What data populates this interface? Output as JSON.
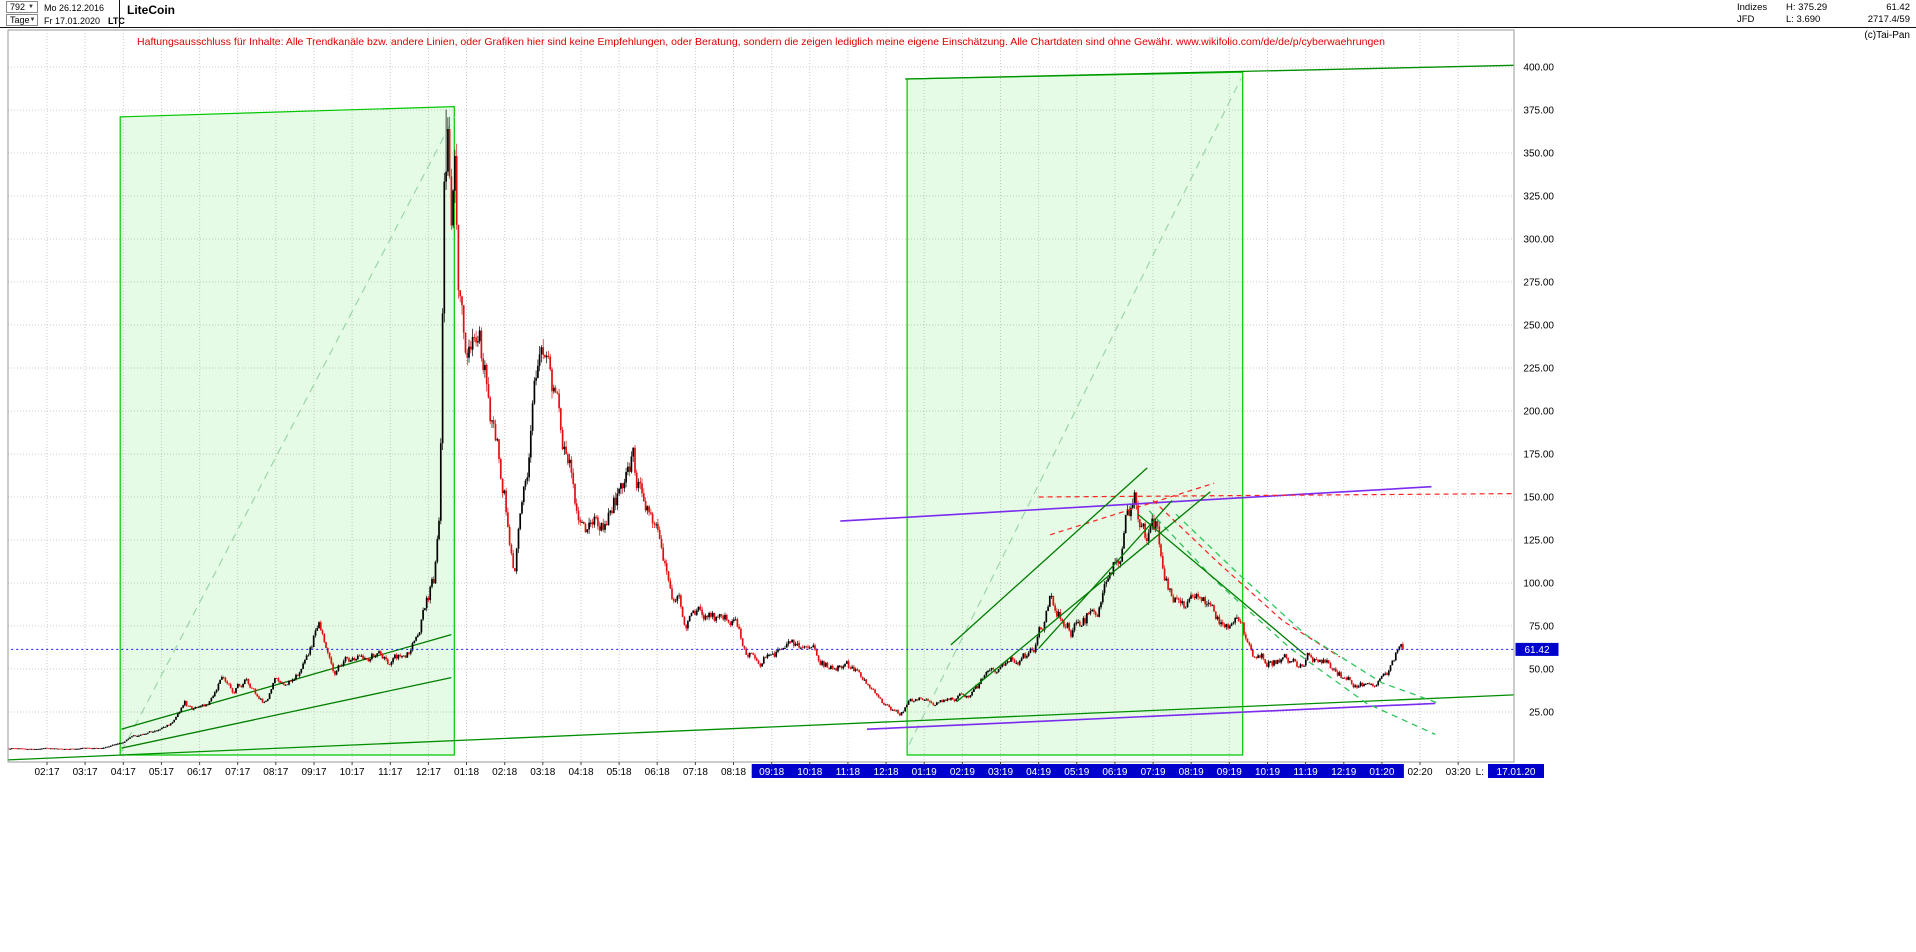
{
  "icons": {
    "chevron_down": "▼"
  },
  "header": {
    "bars_value": "792",
    "period_value": "Tage",
    "date_from": "Mo 26.12.2016",
    "date_to": "Fr 17.01.2020",
    "symbol": "LTC",
    "title": "LiteCoin",
    "info": {
      "group": "Indizes",
      "feed": "JFD",
      "high": "H: 375.29",
      "low": "L: 3.690",
      "last": "61.42",
      "volume": "2717.4/59"
    },
    "copyright": "(c)Tai-Pan"
  },
  "disclaimer": "Haftungsausschluss für Inhalte: Alle Trendkanäle bzw. andere Linien, oder Grafiken hier sind keine Empfehlungen, oder Beratung, sondern die zeigen lediglich meine eigene Einschätzung. Alle Chartdaten sind ohne Gewähr.  www.wikifolio.com/de/de/p/cyberwaehrungen",
  "chart_data": {
    "type": "candlestick",
    "title": "LiteCoin",
    "symbol": "LTC",
    "timeframe": "Tage",
    "visible_bars": 792,
    "range_start": "26.12.2016",
    "range_end": "17.01.2020",
    "period_high": 375.29,
    "period_low": 3.69,
    "last_close": 61.42,
    "last_price_label": "61.42",
    "last_date_prefix": "L:",
    "last_date_label": "17.01.20",
    "ylim": [
      0,
      403
    ],
    "grid": true,
    "y_ticks": [
      "400.00",
      "375.00",
      "350.00",
      "325.00",
      "300.00",
      "275.00",
      "250.00",
      "225.00",
      "200.00",
      "175.00",
      "150.00",
      "125.00",
      "100.00",
      "75.00",
      "50.00",
      "25.00"
    ],
    "x_ticks": [
      "02:17",
      "03:17",
      "04:17",
      "05:17",
      "06:17",
      "07:17",
      "08:17",
      "09:17",
      "10:17",
      "11:17",
      "12:17",
      "01:18",
      "02:18",
      "03:18",
      "04:18",
      "05:18",
      "06:18",
      "07:18",
      "08:18",
      "09:18",
      "10:18",
      "11:18",
      "12:18",
      "01:19",
      "02:19",
      "03:19",
      "04:19",
      "05:19",
      "06:19",
      "07:19",
      "08:19",
      "09:19",
      "10:19",
      "11:19",
      "12:19",
      "01:20",
      "02:20",
      "03:20"
    ],
    "x_highlight": {
      "from": "09:18",
      "to": "01:20"
    },
    "price_line": 61.42,
    "seed": 20200117,
    "bar_count": 795,
    "colors": {
      "up": "#000000",
      "down": "#e01010",
      "accent": "#0000cc",
      "grid": "#cccccc"
    },
    "anchors": [
      [
        -1.2,
        3.7
      ],
      [
        -0.8,
        3.8
      ],
      [
        -0.4,
        3.75
      ],
      [
        0,
        3.9
      ],
      [
        0.4,
        3.8
      ],
      [
        0.8,
        4.0
      ],
      [
        1.2,
        4.1
      ],
      [
        1.5,
        4.6
      ],
      [
        1.8,
        6.5
      ],
      [
        2.0,
        8.0
      ],
      [
        2.3,
        10.5
      ],
      [
        2.6,
        11.5
      ],
      [
        2.9,
        14.5
      ],
      [
        3.2,
        17
      ],
      [
        3.45,
        24
      ],
      [
        3.6,
        31
      ],
      [
        3.8,
        26
      ],
      [
        4.1,
        29
      ],
      [
        4.35,
        33
      ],
      [
        4.6,
        46
      ],
      [
        4.9,
        39
      ],
      [
        5.2,
        43
      ],
      [
        5.5,
        34
      ],
      [
        5.75,
        30
      ],
      [
        5.95,
        43
      ],
      [
        6.2,
        41
      ],
      [
        6.5,
        45
      ],
      [
        6.75,
        53
      ],
      [
        6.95,
        62
      ],
      [
        7.1,
        78
      ],
      [
        7.3,
        63
      ],
      [
        7.55,
        47
      ],
      [
        7.8,
        55
      ],
      [
        8.1,
        51
      ],
      [
        8.4,
        55
      ],
      [
        8.7,
        61
      ],
      [
        8.95,
        55
      ],
      [
        9.2,
        58
      ],
      [
        9.5,
        64
      ],
      [
        9.75,
        73
      ],
      [
        9.95,
        90
      ],
      [
        10.15,
        103
      ],
      [
        10.3,
        155
      ],
      [
        10.42,
        330
      ],
      [
        10.5,
        365
      ],
      [
        10.58,
        300
      ],
      [
        10.7,
        320
      ],
      [
        10.8,
        270
      ],
      [
        10.95,
        240
      ],
      [
        11.2,
        255
      ],
      [
        11.45,
        225
      ],
      [
        11.7,
        185
      ],
      [
        11.95,
        163
      ],
      [
        12.1,
        138
      ],
      [
        12.25,
        112
      ],
      [
        12.5,
        150
      ],
      [
        12.7,
        190
      ],
      [
        12.9,
        232
      ],
      [
        13.1,
        222
      ],
      [
        13.4,
        196
      ],
      [
        13.7,
        162
      ],
      [
        13.95,
        121
      ],
      [
        14.15,
        113
      ],
      [
        14.4,
        126
      ],
      [
        14.7,
        141
      ],
      [
        14.95,
        154
      ],
      [
        15.15,
        172
      ],
      [
        15.35,
        177
      ],
      [
        15.6,
        146
      ],
      [
        15.9,
        126
      ],
      [
        16.15,
        117
      ],
      [
        16.4,
        96
      ],
      [
        16.7,
        83
      ],
      [
        16.95,
        81
      ],
      [
        17.25,
        85
      ],
      [
        17.55,
        77
      ],
      [
        17.85,
        83
      ],
      [
        18.1,
        71
      ],
      [
        18.4,
        61
      ],
      [
        18.7,
        53
      ],
      [
        18.95,
        65
      ],
      [
        19.25,
        59
      ],
      [
        19.55,
        62
      ],
      [
        19.85,
        57
      ],
      [
        20.15,
        58
      ],
      [
        20.45,
        54
      ],
      [
        20.75,
        52
      ],
      [
        20.95,
        50
      ],
      [
        21.25,
        46
      ],
      [
        21.55,
        38
      ],
      [
        21.85,
        33
      ],
      [
        22.1,
        27
      ],
      [
        22.35,
        23.5
      ],
      [
        22.6,
        30
      ],
      [
        22.9,
        32
      ],
      [
        23.2,
        33
      ],
      [
        23.5,
        31.5
      ],
      [
        23.8,
        33
      ],
      [
        24.1,
        34
      ],
      [
        24.4,
        37.5
      ],
      [
        24.7,
        45
      ],
      [
        24.95,
        47
      ],
      [
        25.25,
        50
      ],
      [
        25.55,
        56
      ],
      [
        25.85,
        60
      ],
      [
        26.1,
        74
      ],
      [
        26.3,
        91
      ],
      [
        26.6,
        81
      ],
      [
        26.9,
        75
      ],
      [
        27.2,
        79
      ],
      [
        27.5,
        90
      ],
      [
        27.8,
        101
      ],
      [
        28.1,
        113
      ],
      [
        28.35,
        137
      ],
      [
        28.55,
        143
      ],
      [
        28.85,
        121
      ],
      [
        29.1,
        124
      ],
      [
        29.35,
        100
      ],
      [
        29.6,
        95
      ],
      [
        29.9,
        93
      ],
      [
        30.2,
        97
      ],
      [
        30.5,
        83
      ],
      [
        30.8,
        73
      ],
      [
        31.1,
        67
      ],
      [
        31.3,
        71
      ],
      [
        31.6,
        57
      ],
      [
        31.9,
        56
      ],
      [
        32.2,
        55
      ],
      [
        32.5,
        58
      ],
      [
        32.8,
        53
      ],
      [
        33.1,
        60
      ],
      [
        33.4,
        56
      ],
      [
        33.7,
        50
      ],
      [
        33.95,
        46
      ],
      [
        34.2,
        44
      ],
      [
        34.5,
        42
      ],
      [
        34.8,
        40.5
      ],
      [
        35.0,
        43
      ],
      [
        35.2,
        49
      ],
      [
        35.4,
        57.5
      ],
      [
        35.55,
        61.42
      ]
    ],
    "spikes": [
      {
        "t": 10.45,
        "high": 375.29
      },
      {
        "t": 22.35,
        "low": 23.1
      },
      {
        "t": -1.0,
        "low": 3.69
      }
    ],
    "overlays": [
      {
        "kind": "box",
        "name": "trend-channel-box-2017",
        "under": true,
        "stroke": "#00c800",
        "fill": "rgba(0,220,0,0.10)",
        "pts": [
          [
            1.92,
            371
          ],
          [
            10.68,
            377
          ],
          [
            10.68,
            0
          ],
          [
            1.92,
            0
          ]
        ]
      },
      {
        "kind": "box",
        "name": "trend-channel-box-2019",
        "under": true,
        "stroke": "#00c800",
        "fill": "rgba(0,220,0,0.10)",
        "pts": [
          [
            22.55,
            393
          ],
          [
            31.35,
            397
          ],
          [
            31.35,
            0
          ],
          [
            22.55,
            0
          ]
        ]
      },
      {
        "kind": "line",
        "name": "channel-diagonal-2017",
        "under": true,
        "stroke": "#9bd6a8",
        "dash": "8,6",
        "w": 1.2,
        "pts": [
          [
            1.95,
            2
          ],
          [
            10.68,
            371
          ]
        ]
      },
      {
        "kind": "line",
        "name": "channel-diagonal-2019",
        "under": true,
        "stroke": "#9bd6a8",
        "dash": "8,6",
        "w": 1.2,
        "pts": [
          [
            22.6,
            6
          ],
          [
            31.3,
            393
          ]
        ]
      },
      {
        "kind": "line",
        "name": "support-line-2017-a",
        "under": true,
        "stroke": "#007d00",
        "pts": [
          [
            1.95,
            4
          ],
          [
            10.6,
            45
          ]
        ]
      },
      {
        "kind": "line",
        "name": "support-line-2017-b",
        "under": true,
        "stroke": "#007d00",
        "pts": [
          [
            1.95,
            15
          ],
          [
            10.6,
            70
          ]
        ]
      },
      {
        "kind": "line",
        "name": "long-term-support",
        "under": true,
        "stroke": "#008f00",
        "pts": [
          [
            -1.2,
            -3
          ],
          [
            38.5,
            35
          ]
        ]
      },
      {
        "kind": "line",
        "name": "upper-resistance",
        "stroke": "#008f00",
        "pts": [
          [
            22.5,
            393
          ],
          [
            38.5,
            401
          ]
        ]
      },
      {
        "kind": "line",
        "name": "violet-resistance",
        "stroke": "#7b2bef",
        "w": 1.6,
        "pts": [
          [
            20.8,
            136
          ],
          [
            36.3,
            156
          ]
        ]
      },
      {
        "kind": "line",
        "name": "violet-support",
        "stroke": "#7b2bef",
        "w": 1.6,
        "pts": [
          [
            21.5,
            15
          ],
          [
            36.4,
            30
          ]
        ]
      },
      {
        "kind": "line",
        "name": "red-resistance-flat",
        "stroke": "#ff2020",
        "dash": "5,4",
        "w": 1.2,
        "pts": [
          [
            26.0,
            150
          ],
          [
            38.5,
            152
          ]
        ]
      },
      {
        "kind": "line",
        "name": "red-resistance-rising",
        "stroke": "#ff2020",
        "dash": "5,4",
        "w": 1.2,
        "pts": [
          [
            26.3,
            128
          ],
          [
            30.6,
            158
          ]
        ]
      },
      {
        "kind": "polyline",
        "name": "red-decline-curve",
        "stroke": "#ff2020",
        "dash": "5,4",
        "w": 1.2,
        "pts": [
          [
            29.0,
            148
          ],
          [
            30.7,
            112
          ],
          [
            32.4,
            78
          ],
          [
            33.9,
            57
          ]
        ]
      },
      {
        "kind": "polyline",
        "name": "green-decline-curve-a",
        "stroke": "#2ec45a",
        "dash": "6,5",
        "w": 1.3,
        "pts": [
          [
            28.9,
            142
          ],
          [
            30.7,
            100
          ],
          [
            32.6,
            62
          ],
          [
            34.6,
            30
          ],
          [
            36.4,
            12
          ]
        ]
      },
      {
        "kind": "polyline",
        "name": "green-decline-curve-b",
        "stroke": "#2ec45a",
        "dash": "6,5",
        "w": 1.3,
        "pts": [
          [
            29.6,
            140
          ],
          [
            31.3,
            104
          ],
          [
            33.0,
            70
          ],
          [
            35.0,
            42
          ],
          [
            36.5,
            30
          ]
        ]
      },
      {
        "kind": "line",
        "name": "uptrend-steep-2019",
        "stroke": "#007d00",
        "pts": [
          [
            23.7,
            64
          ],
          [
            28.85,
            167
          ]
        ]
      },
      {
        "kind": "line",
        "name": "uptrend-2019",
        "stroke": "#007d00",
        "pts": [
          [
            23.85,
            31
          ],
          [
            30.5,
            153
          ]
        ]
      },
      {
        "kind": "line",
        "name": "uptrend-short-2019",
        "stroke": "#007d00",
        "pts": [
          [
            26.0,
            62
          ],
          [
            29.5,
            148
          ]
        ]
      },
      {
        "kind": "line",
        "name": "downtrend-2019",
        "stroke": "#007d00",
        "pts": [
          [
            28.6,
            140
          ],
          [
            33.0,
            58
          ]
        ]
      },
      {
        "kind": "line",
        "name": "current-price-line",
        "stroke": "#1414ff",
        "dash": "2,3",
        "w": 1,
        "pts": [
          [
            -1.2,
            61.42
          ],
          [
            38.5,
            61.42
          ]
        ]
      }
    ]
  }
}
